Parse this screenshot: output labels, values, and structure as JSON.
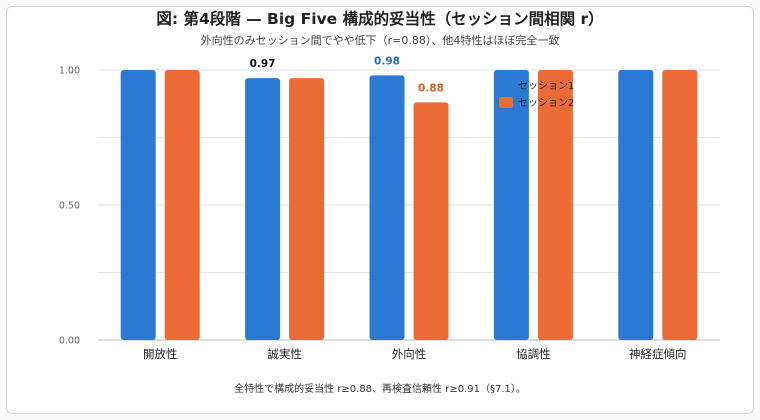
{
  "title": "図: 第4段階 — Big Five 構成的妥当性（セッション間相関 r）",
  "subtitle": "外向性のみセッション間でやや低下（r=0.88）、他4特性はほぼ完全一致",
  "footer": "全特性で構成的妥当性 r≥0.88、再検査信頼性 r≥0.91（§7.1）。",
  "colors": {
    "session1": "#2a7ad5",
    "session2": "#ec6a35",
    "grid": "#e6e6e6",
    "axis": "#bdbdbd"
  },
  "chart_data": {
    "type": "bar",
    "categories": [
      "開放性",
      "誠実性",
      "外向性",
      "協調性",
      "神経症傾向"
    ],
    "series": [
      {
        "name": "セッション1",
        "values": [
          1.0,
          0.97,
          0.98,
          1.0,
          1.0
        ]
      },
      {
        "name": "セッション2",
        "values": [
          1.0,
          0.97,
          0.88,
          1.0,
          1.0
        ]
      }
    ],
    "ylim": [
      0,
      1
    ],
    "yticks": [
      "0.00",
      "0.50",
      "1.00"
    ],
    "grid": true,
    "legend": "top-right",
    "data_labels": [
      {
        "category_index": 1,
        "series_index": 0,
        "text": "0.97",
        "color": "#111111"
      },
      {
        "category_index": 2,
        "series_index": 0,
        "text": "0.98",
        "color": "#2a6fc0"
      },
      {
        "category_index": 2,
        "series_index": 1,
        "text": "0.88",
        "color": "#d0602a"
      }
    ]
  }
}
